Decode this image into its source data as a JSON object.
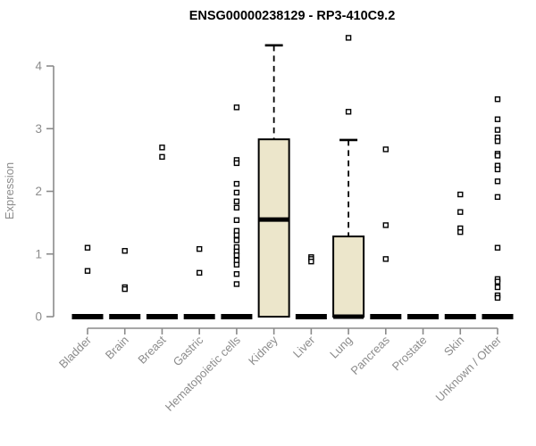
{
  "title": "ENSG00000238129 - RP3-410C9.2",
  "colors": {
    "title_text": "#000000",
    "axis_line": "#8a8a8a",
    "axis_text": "#8c8c8c",
    "box_fill": "#ece6cb",
    "box_border": "#000000",
    "median_line": "#000000",
    "outlier_fill": "#ffffff",
    "outlier_border": "#000000",
    "background": "#ffffff"
  },
  "chart_data": {
    "type": "boxplot",
    "title": "ENSG00000238129 - RP3-410C9.2",
    "xlabel": "",
    "ylabel": "Expression",
    "ylim": [
      0,
      4.5
    ],
    "yticks": [
      0,
      1,
      2,
      3,
      4
    ],
    "grid": false,
    "legend": "none",
    "categories": [
      "Bladder",
      "Brain",
      "Breast",
      "Gastric",
      "Hematopoietic cells",
      "Kidney",
      "Liver",
      "Lung",
      "Pancreas",
      "Prostate",
      "Skin",
      "Unknown / Other"
    ],
    "series": [
      {
        "category": "Bladder",
        "q1": 0,
        "median": 0,
        "q3": 0,
        "whisker_low": 0,
        "whisker_high": 0,
        "outliers": [
          1.1,
          0.73
        ]
      },
      {
        "category": "Brain",
        "q1": 0,
        "median": 0,
        "q3": 0,
        "whisker_low": 0,
        "whisker_high": 0,
        "outliers": [
          1.05,
          0.47,
          0.44
        ]
      },
      {
        "category": "Breast",
        "q1": 0,
        "median": 0,
        "q3": 0,
        "whisker_low": 0,
        "whisker_high": 0,
        "outliers": [
          2.7,
          2.55
        ]
      },
      {
        "category": "Gastric",
        "q1": 0,
        "median": 0,
        "q3": 0,
        "whisker_low": 0,
        "whisker_high": 0,
        "outliers": [
          1.08,
          0.7
        ]
      },
      {
        "category": "Hematopoietic cells",
        "q1": 0,
        "median": 0,
        "q3": 0,
        "whisker_low": 0,
        "whisker_high": 0,
        "outliers": [
          3.34,
          2.5,
          2.45,
          2.12,
          1.98,
          1.84,
          1.74,
          1.54,
          1.37,
          1.3,
          1.22,
          1.11,
          1.04,
          0.98,
          0.9,
          0.83,
          0.68,
          0.52
        ]
      },
      {
        "category": "Kidney",
        "q1": 0,
        "median": 1.55,
        "q3": 2.83,
        "whisker_low": 0,
        "whisker_high": 4.33,
        "outliers": []
      },
      {
        "category": "Liver",
        "q1": 0,
        "median": 0,
        "q3": 0,
        "whisker_low": 0,
        "whisker_high": 0,
        "outliers": [
          0.95,
          0.92,
          0.88
        ]
      },
      {
        "category": "Lung",
        "q1": 0,
        "median": 0,
        "q3": 1.28,
        "whisker_low": 0,
        "whisker_high": 2.82,
        "outliers": [
          4.45,
          3.27
        ]
      },
      {
        "category": "Pancreas",
        "q1": 0,
        "median": 0,
        "q3": 0,
        "whisker_low": 0,
        "whisker_high": 0,
        "outliers": [
          2.67,
          1.46,
          0.92
        ]
      },
      {
        "category": "Prostate",
        "q1": 0,
        "median": 0,
        "q3": 0,
        "whisker_low": 0,
        "whisker_high": 0,
        "outliers": []
      },
      {
        "category": "Skin",
        "q1": 0,
        "median": 0,
        "q3": 0,
        "whisker_low": 0,
        "whisker_high": 0,
        "outliers": [
          1.95,
          1.67,
          1.41,
          1.35
        ]
      },
      {
        "category": "Unknown / Other",
        "q1": 0,
        "median": 0,
        "q3": 0,
        "whisker_low": 0,
        "whisker_high": 0,
        "outliers": [
          3.47,
          3.15,
          2.98,
          2.86,
          2.8,
          2.6,
          2.57,
          2.41,
          2.35,
          2.16,
          1.91,
          1.1,
          0.6,
          0.56,
          0.47,
          0.34,
          0.3
        ]
      }
    ]
  }
}
